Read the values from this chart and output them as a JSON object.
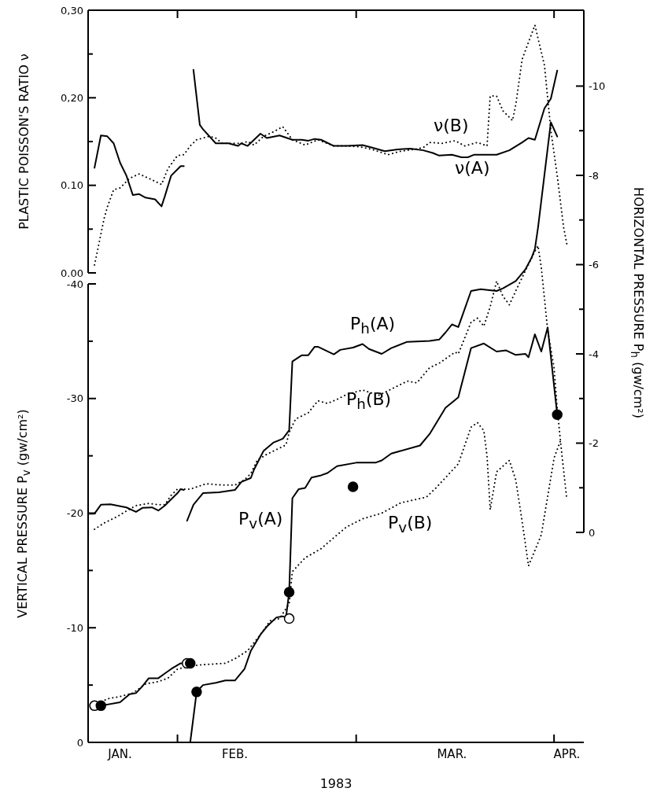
{
  "chart_data": [
    {
      "type": "line",
      "ylabel": "PLASTIC POISSON'S RATIO ν",
      "tick_labels": "y",
      "xlim": [
        "1983-01-18",
        "1983-04-05T16:00"
      ],
      "xticks": [
        {
          "value": "1983-02-01",
          "label": null
        },
        {
          "value": "1983-03-01",
          "label": null
        },
        {
          "value": "1983-04-01",
          "label": null
        }
      ],
      "ylim": [
        0,
        0.3
      ],
      "yticks": [
        {
          "value": 0,
          "label": "0.00"
        },
        {
          "value": 0.05,
          "label": null
        },
        {
          "value": 0.1,
          "label": "0.10"
        },
        {
          "value": 0.15,
          "label": null
        },
        {
          "value": 0.2,
          "label": "0,20"
        },
        {
          "value": 0.25,
          "label": null
        },
        {
          "value": 0.3,
          "label": "0,30"
        }
      ],
      "series": [
        {
          "name": "ν(A)",
          "color": "#000000",
          "line_style": "solid",
          "x": [
            "1983-01-19",
            "1983-01-20",
            "1983-01-21",
            "1983-01-22",
            "1983-01-23",
            "1983-01-24",
            "1983-01-25",
            "1983-01-26",
            "1983-01-27",
            "1983-01-28T12:00",
            "1983-01-29T12:00",
            "1983-01-30",
            "1983-01-31",
            "1983-02-01T12:00",
            "1983-02-02",
            "1983-02-02T18:00",
            "1983-02-03T12:00",
            "1983-02-04T12:00",
            "1983-02-05",
            "1983-02-07",
            "1983-02-09",
            "1983-02-10T12:00",
            "1983-02-11",
            "1983-02-12",
            "1983-02-14",
            "1983-02-15",
            "1983-02-17",
            "1983-02-19",
            "1983-02-20T12:00",
            "1983-02-21T12:00",
            "1983-02-22T12:00",
            "1983-02-23T12:00",
            "1983-02-25T12:00",
            "1983-02-27T12:00",
            "1983-03-02",
            "1983-03-03T12:00",
            "1983-03-05T12:00",
            "1983-03-07T12:00",
            "1983-03-09T12:00",
            "1983-03-11T12:00",
            "1983-03-13",
            "1983-03-14",
            "1983-03-16",
            "1983-03-17T12:00",
            "1983-03-18T12:00",
            "1983-03-19T12:00",
            "1983-03-23",
            "1983-03-25",
            "1983-03-27",
            "1983-03-28",
            "1983-03-29",
            "1983-03-30T12:00",
            "1983-03-31T12:00",
            "1983-04-01T12:00"
          ],
          "values": [
            0.12,
            0.157,
            0.156,
            0.148,
            0.126,
            0.111,
            0.089,
            0.09,
            0.086,
            0.084,
            0.076,
            0.087,
            0.111,
            0.122,
            0.122,
            null,
            0.232,
            0.169,
            0.164,
            0.148,
            0.148,
            0.145,
            0.148,
            0.145,
            0.159,
            0.154,
            0.157,
            0.152,
            0.152,
            0.151,
            0.153,
            0.152,
            0.145,
            0.145,
            0.146,
            0.143,
            0.139,
            0.141,
            0.142,
            0.14,
            0.137,
            0.134,
            0.135,
            0.132,
            0.132,
            0.135,
            0.135,
            0.14,
            0.149,
            0.154,
            0.152,
            0.188,
            0.199,
            0.231
          ]
        },
        {
          "name": "ν(B)",
          "color": "#000000",
          "line_style": "dotted",
          "x": [
            "1983-01-19",
            "1983-01-20T12:00",
            "1983-01-21",
            "1983-01-22",
            "1983-01-23",
            "1983-01-24T12:00",
            "1983-01-26",
            "1983-01-27T12:00",
            "1983-01-29T12:00",
            "1983-01-30T12:00",
            "1983-02-01",
            "1983-02-02",
            "1983-02-03",
            "1983-02-04",
            "1983-02-06",
            "1983-02-07",
            "1983-02-08",
            "1983-02-09",
            "1983-02-11",
            "1983-02-12",
            "1983-02-13",
            "1983-02-14T12:00",
            "1983-02-16",
            "1983-02-17T12:00",
            "1983-02-19",
            "1983-02-21",
            "1983-02-23",
            "1983-02-25T12:00",
            "1983-02-27T12:00",
            "1983-03-01T12:00",
            "1983-03-03T12:00",
            "1983-03-06",
            "1983-03-08",
            "1983-03-10",
            "1983-03-11T12:00",
            "1983-03-12T12:00",
            "1983-03-14T12:00",
            "1983-03-16T12:00",
            "1983-03-18",
            "1983-03-20",
            "1983-03-21T12:00",
            "1983-03-22",
            "1983-03-23",
            "1983-03-24",
            "1983-03-25T12:00",
            "1983-03-26",
            "1983-03-27",
            "1983-03-29",
            "1983-03-30T12:00",
            "1983-03-31T12:00",
            "1983-04-01T12:00",
            "1983-04-02T12:00",
            "1983-04-03"
          ],
          "values": [
            0.009,
            0.062,
            0.075,
            0.095,
            0.097,
            0.108,
            0.113,
            0.108,
            0.101,
            0.119,
            0.134,
            0.135,
            0.145,
            0.152,
            0.156,
            0.154,
            0.148,
            0.148,
            0.148,
            0.15,
            0.146,
            0.156,
            0.161,
            0.167,
            0.152,
            0.146,
            0.152,
            0.145,
            0.145,
            0.144,
            0.141,
            0.135,
            0.139,
            0.141,
            0.143,
            0.149,
            0.148,
            0.151,
            0.145,
            0.149,
            0.145,
            0.202,
            0.202,
            0.185,
            0.174,
            0.192,
            0.244,
            0.283,
            0.237,
            0.163,
            0.111,
            0.052,
            0.033
          ]
        }
      ]
    },
    {
      "type": "line",
      "xlabel": "1983",
      "ylabel": "VERTICAL PRESSURE P$_{v}$ (gw/cm²)",
      "y2label": "HORIZONTAL PRESSURE P$_{h}$ (gw/cm²)",
      "xlim": [
        "1983-01-18",
        "1983-04-05T16:00"
      ],
      "xticks": [
        {
          "value": "1983-01-23",
          "label": "JAN."
        },
        {
          "value": "1983-02-01",
          "label": null
        },
        {
          "value": "1983-02-10",
          "label": "FEB."
        },
        {
          "value": "1983-03-01",
          "label": null
        },
        {
          "value": "1983-03-16",
          "label": "MAR."
        },
        {
          "value": "1983-04-01",
          "label": null
        },
        {
          "value": "1983-04-03",
          "label": "APR."
        }
      ],
      "ylim": [
        0,
        -40
      ],
      "yticks": [
        0,
        {
          "value": -5,
          "label": null
        },
        -10,
        {
          "value": -15,
          "label": null
        },
        -20,
        {
          "value": -25,
          "label": null
        },
        -30,
        {
          "value": -35,
          "label": null
        },
        -40
      ],
      "y2lim": [
        0,
        -11.7
      ],
      "y2ticks": [
        0,
        {
          "value": -1,
          "label": null
        },
        -2,
        {
          "value": -3,
          "label": null
        },
        -4,
        {
          "value": -5,
          "label": null
        },
        -6,
        {
          "value": -7,
          "label": null
        },
        -8,
        {
          "value": -9,
          "label": null
        },
        -10
      ],
      "series": [
        {
          "name": "P$_{h}$(A)",
          "axis": "y2",
          "color": "#000000",
          "line_style": "solid",
          "x": [
            "1983-01-18",
            "1983-01-19",
            "1983-01-20",
            "1983-01-21T12:00",
            "1983-01-24",
            "1983-01-25T12:00",
            "1983-01-26T12:00",
            "1983-01-28",
            "1983-01-29",
            "1983-01-30",
            "1983-02-01",
            "1983-02-01T12:00",
            "1983-02-02",
            "1983-02-02T06:00",
            "1983-02-02T12:00",
            "1983-02-03T12:00",
            "1983-02-05",
            "1983-02-07T12:00",
            "1983-02-10",
            "1983-02-11",
            "1983-02-12T12:00",
            "1983-02-13",
            "1983-02-14T12:00",
            "1983-02-16",
            "1983-02-17T12:00",
            "1983-02-18T12:00",
            "1983-02-19",
            "1983-02-20T12:00",
            "1983-02-21T12:00",
            "1983-02-22T12:00",
            "1983-02-23",
            "1983-02-25T12:00",
            "1983-02-26T12:00",
            "1983-02-28T12:00",
            "1983-03-02",
            "1983-03-03",
            "1983-03-05",
            "1983-03-06T12:00",
            "1983-03-09",
            "1983-03-12T12:00",
            "1983-03-14",
            "1983-03-15",
            "1983-03-16",
            "1983-03-17",
            "1983-03-19",
            "1983-03-20T12:00",
            "1983-03-23",
            "1983-03-24",
            "1983-03-26",
            "1983-03-27T12:00",
            "1983-03-28T12:00",
            "1983-03-29",
            "1983-03-29T12:00",
            "1983-03-31T12:00",
            "1983-04-01T12:00"
          ],
          "values": [
            -0.42,
            -0.42,
            -0.62,
            -0.63,
            -0.56,
            -0.46,
            -0.55,
            -0.56,
            -0.49,
            -0.6,
            -0.88,
            -0.97,
            -0.95,
            null,
            -0.26,
            -0.62,
            -0.88,
            -0.9,
            -0.95,
            -1.13,
            -1.22,
            -1.41,
            -1.83,
            -2.01,
            -2.1,
            -2.29,
            -3.83,
            -3.97,
            -3.97,
            -4.16,
            -4.16,
            -3.99,
            -4.09,
            -4.14,
            -4.22,
            -4.11,
            -4.0,
            -4.13,
            -4.27,
            -4.29,
            -4.32,
            -4.48,
            -4.66,
            -4.6,
            -5.41,
            -5.45,
            -5.41,
            -5.47,
            -5.63,
            -5.89,
            -6.16,
            -6.35,
            -6.84,
            -9.19,
            -8.87
          ]
        },
        {
          "name": "P$_{h}$(B)",
          "axis": "y2",
          "color": "#000000",
          "line_style": "dotted",
          "x": [
            "1983-01-19",
            "1983-01-20T12:00",
            "1983-01-22T12:00",
            "1983-01-24",
            "1983-01-25T12:00",
            "1983-01-27T12:00",
            "1983-01-29",
            "1983-01-30",
            "1983-01-31",
            "1983-02-01",
            "1983-02-03",
            "1983-02-05T12:00",
            "1983-02-08",
            "1983-02-10",
            "1983-02-11T12:00",
            "1983-02-12T12:00",
            "1983-02-13T12:00",
            "1983-02-15",
            "1983-02-17",
            "1983-02-18",
            "1983-02-18T12:00",
            "1983-02-19T12:00",
            "1983-02-21T12:00",
            "1983-02-23",
            "1983-02-24T12:00",
            "1983-02-26",
            "1983-02-27T12:00",
            "1983-03-02",
            "1983-03-04T12:00",
            "1983-03-06T12:00",
            "1983-03-09",
            "1983-03-10T12:00",
            "1983-03-12T12:00",
            "1983-03-14",
            "1983-03-16T12:00",
            "1983-03-17",
            "1983-03-19",
            "1983-03-20",
            "1983-03-21",
            "1983-03-22",
            "1983-03-23",
            "1983-03-24",
            "1983-03-25",
            "1983-03-26",
            "1983-03-27T12:00",
            "1983-03-29",
            "1983-03-29T12:00",
            "1983-03-30",
            "1983-03-30T12:00",
            "1983-03-31",
            "1983-04-01",
            "1983-04-01T12:00",
            "1983-04-02"
          ],
          "values": [
            -0.07,
            -0.21,
            -0.35,
            -0.48,
            -0.6,
            -0.65,
            -0.62,
            -0.62,
            -0.83,
            -0.97,
            -0.97,
            -1.09,
            -1.06,
            -1.06,
            -1.18,
            -1.32,
            -1.62,
            -1.75,
            -1.89,
            -1.96,
            -2.24,
            -2.54,
            -2.68,
            -2.95,
            -2.89,
            -2.98,
            -3.09,
            -3.19,
            -3.07,
            -3.21,
            -3.39,
            -3.35,
            -3.69,
            -3.79,
            -4.04,
            -4.0,
            -4.71,
            -4.8,
            -4.62,
            -5.06,
            -5.63,
            -5.29,
            -5.1,
            -5.41,
            -5.86,
            -6.3,
            -6.42,
            -5.94,
            -5.24,
            -4.53,
            -3.7,
            -2.77,
            -2.06
          ]
        },
        {
          "name": "P$_{v}$(A)",
          "color": "#000000",
          "line_style": "solid",
          "x": [
            "1983-01-20",
            "1983-01-23",
            "1983-01-24T12:00",
            "1983-01-25T12:00",
            "1983-01-26T12:00",
            "1983-01-27T12:00",
            "1983-01-29",
            "1983-01-30",
            "1983-01-31",
            "1983-02-01T12:00",
            "1983-02-02T12:00",
            "1983-02-02T18:00",
            "1983-02-03",
            "1983-02-04",
            "1983-02-05",
            "1983-02-07",
            "1983-02-08T12:00",
            "1983-02-10",
            "1983-02-11T12:00",
            "1983-02-12T12:00",
            "1983-02-14",
            "1983-02-15",
            "1983-02-16T12:00",
            "1983-02-17T12:00",
            "1983-02-18",
            "1983-02-18T12:00",
            "1983-02-19",
            "1983-02-20",
            "1983-02-21",
            "1983-02-22",
            "1983-02-23T12:00",
            "1983-02-24T12:00",
            "1983-02-26",
            "1983-03-01",
            "1983-03-04",
            "1983-03-05",
            "1983-03-06T12:00",
            "1983-03-11",
            "1983-03-12T12:00",
            "1983-03-15",
            "1983-03-17",
            "1983-03-19",
            "1983-03-21",
            "1983-03-23",
            "1983-03-24T12:00",
            "1983-03-26",
            "1983-03-27T12:00",
            "1983-03-28",
            "1983-03-29",
            "1983-03-30",
            "1983-03-31",
            "1983-04-01T12:00"
          ],
          "values": [
            -3.2,
            -3.5,
            -4.2,
            -4.3,
            -4.9,
            -5.6,
            -5.6,
            -6.0,
            -6.4,
            -6.9,
            -6.9,
            null,
            0,
            -4.4,
            -5.0,
            -5.2,
            -5.4,
            -5.4,
            -6.4,
            -8.0,
            -9.4,
            -10.1,
            -10.9,
            -11.0,
            -10.9,
            -13.1,
            -21.3,
            -22.1,
            -22.2,
            -23.1,
            -23.3,
            -23.5,
            -24.1,
            -24.4,
            -24.4,
            -24.6,
            -25.2,
            -25.9,
            -26.9,
            -29.2,
            -30.1,
            -34.4,
            -34.8,
            -34.1,
            -34.2,
            -33.8,
            -33.9,
            -33.6,
            -35.6,
            -34.1,
            -36.2,
            -28.6
          ]
        },
        {
          "name": "P$_{v}$(B)",
          "color": "#000000",
          "line_style": "dotted",
          "x": [
            "1983-01-19",
            "1983-01-21",
            "1983-01-23",
            "1983-01-25",
            "1983-01-27",
            "1983-01-29",
            "1983-01-30T12:00",
            "1983-02-01",
            "1983-02-03T12:00",
            "1983-02-05T12:00",
            "1983-02-08T12:00",
            "1983-02-10",
            "1983-02-12",
            "1983-02-14",
            "1983-02-15T12:00",
            "1983-02-17",
            "1983-02-18T12:00",
            "1983-02-19",
            "1983-02-21",
            "1983-02-23T12:00",
            "1983-02-26",
            "1983-02-27T12:00",
            "1983-03-02",
            "1983-03-05",
            "1983-03-08",
            "1983-03-12",
            "1983-03-13T12:00",
            "1983-03-15",
            "1983-03-17",
            "1983-03-19",
            "1983-03-20",
            "1983-03-21",
            "1983-03-21T12:00",
            "1983-03-22",
            "1983-03-23",
            "1983-03-25",
            "1983-03-26",
            "1983-03-27",
            "1983-03-28",
            "1983-03-30",
            "1983-04-01",
            "1983-04-02",
            "1983-04-03"
          ],
          "values": [
            -3.2,
            -3.8,
            -4.0,
            -4.3,
            -5.1,
            -5.3,
            -5.6,
            -6.4,
            -6.7,
            -6.8,
            -6.9,
            -7.3,
            -8.0,
            -9.4,
            -10.6,
            -10.8,
            -12.1,
            -14.9,
            -16.1,
            -16.9,
            -18.1,
            -18.8,
            -19.5,
            -20.0,
            -20.9,
            -21.4,
            -22.2,
            -23.1,
            -24.3,
            -27.5,
            -27.9,
            -27.2,
            -25.0,
            -20.3,
            -23.6,
            -24.6,
            -22.9,
            -19.3,
            -15.4,
            -18.1,
            -24.8,
            -26.3,
            -21.2
          ]
        },
        {
          "type": "scatter",
          "marker": "circle",
          "color": "#ffffff",
          "x": [
            "1983-01-19",
            "1983-02-02T12:00",
            "1983-02-18T12:00"
          ],
          "values": [
            -3.2,
            -6.9,
            -10.8
          ]
        },
        {
          "type": "scatter",
          "marker": "circle",
          "color": "#000000",
          "x": [
            "1983-01-20",
            "1983-02-03",
            "1983-02-04",
            "1983-02-18T12:00",
            "1983-02-28T12:00",
            "1983-04-01T12:00"
          ],
          "values": [
            -3.2,
            -6.9,
            -4.4,
            -13.1,
            -22.3,
            -28.6
          ]
        }
      ]
    }
  ]
}
